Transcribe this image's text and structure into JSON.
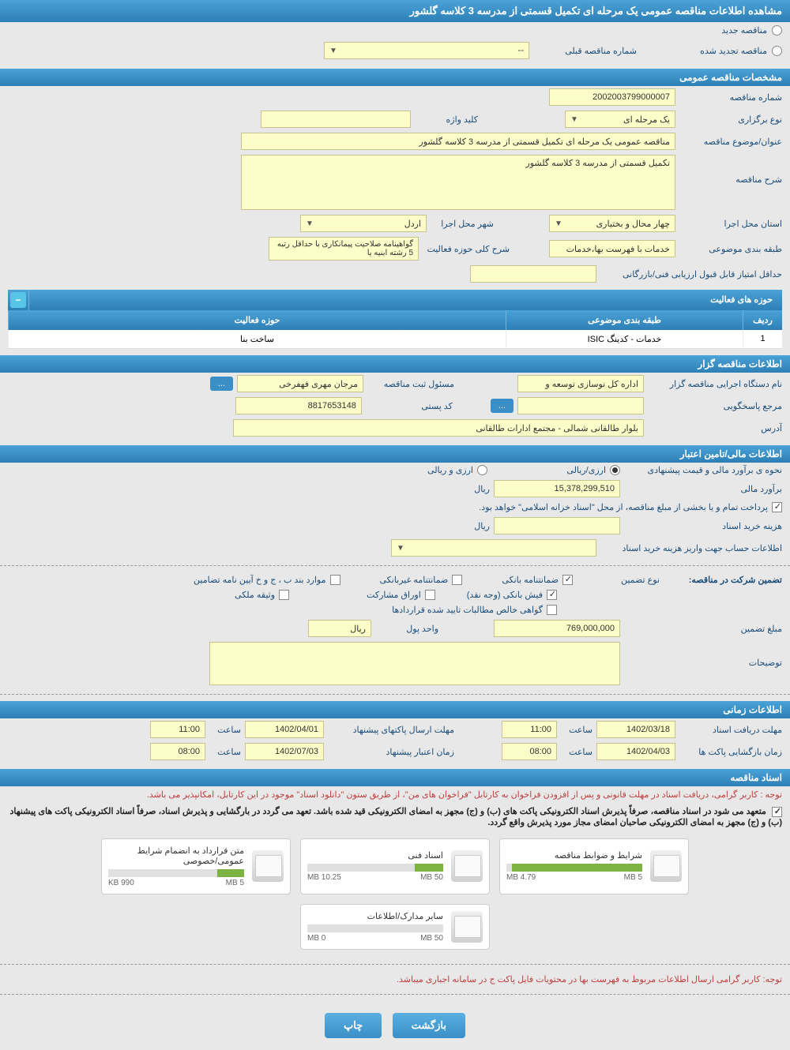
{
  "header": {
    "title": "مشاهده اطلاعات مناقصه عمومی یک مرحله ای تکمیل قسمتی از مدرسه 3 کلاسه گلشور"
  },
  "tenderType": {
    "new": "مناقصه جدید",
    "renewed": "مناقصه تجدید شده",
    "prevNumberLabel": "شماره مناقصه قبلی",
    "prevNumberValue": "--"
  },
  "general": {
    "sectionTitle": "مشخصات مناقصه عمومی",
    "tenderNumberLabel": "شماره مناقصه",
    "tenderNumber": "2002003799000007",
    "holdingTypeLabel": "نوع برگزاری",
    "holdingType": "یک مرحله ای",
    "keywordLabel": "کلید واژه",
    "keyword": "",
    "subjectLabel": "عنوان/موضوع مناقصه",
    "subject": "مناقصه عمومی یک مرحله ای تکمیل قسمتی از مدرسه 3 کلاسه گلشور",
    "descLabel": "شرح مناقصه",
    "desc": "تکمیل قسمتی از مدرسه 3 کلاسه گلشور",
    "provinceLabel": "استان محل اجرا",
    "province": "چهار محال و بختیاری",
    "cityLabel": "شهر محل اجرا",
    "city": "اردل",
    "categoryLabel": "طبقه بندی موضوعی",
    "category": "خدمات با فهرست بها،خدمات",
    "activityDescLabel": "شرح کلی حوزه فعالیت",
    "activityDesc": "گواهینامه صلاحیت پیمانکاری با حداقل رتبه 5 رشته ابنیه یا",
    "minScoreLabel": "حداقل امتیاز قابل قبول ارزیابی فنی/بازرگانی",
    "minScore": ""
  },
  "activityTable": {
    "title": "حوزه های فعالیت",
    "headers": {
      "row": "ردیف",
      "category": "طبقه بندی موضوعی",
      "activity": "حوزه فعالیت"
    },
    "rows": [
      {
        "row": "1",
        "category": "خدمات - کدینگ ISIC",
        "activity": "ساخت بنا"
      }
    ]
  },
  "organizer": {
    "sectionTitle": "اطلاعات مناقصه گزار",
    "orgLabel": "نام دستگاه اجرایی مناقصه گزار",
    "org": "اداره کل نوسازی  توسعه و",
    "responsibleLabel": "مسئول ثبت مناقصه",
    "responsible": "مرجان مهری فهفرخی",
    "refLabel": "مرجع پاسخگویی",
    "ref": "",
    "postalLabel": "کد پستی",
    "postal": "8817653148",
    "addressLabel": "آدرس",
    "address": "بلوار طالقانی شمالی - مجتمع ادارات طالقانی"
  },
  "financial": {
    "sectionTitle": "اطلاعات مالی/تامین اعتبار",
    "methodLabel": "نحوه ی برآورد مالی و قیمت پیشنهادی",
    "fxRial": "ارزی/ریالی",
    "fxAndRial": "ارزی و ریالی",
    "estimateLabel": "برآورد مالی",
    "estimate": "15,378,299,510",
    "rialUnit": "ریال",
    "paymentNote": "پرداخت تمام و یا بخشی از مبلغ مناقصه، از محل \"اسناد خزانه اسلامی\" خواهد بود.",
    "docCostLabel": "هزینه خرید اسناد",
    "docCost": "",
    "accountLabel": "اطلاعات حساب جهت واریز هزینه خرید اسناد",
    "guaranteeTitle": "تضمین شرکت در مناقصه:",
    "guaranteeTypeLabel": "نوع تضمین",
    "opt1": "ضمانتنامه بانکی",
    "opt2": "ضمانتنامه غیربانکی",
    "opt3": "موارد بند ب ، ج و خ آیین نامه تضامین",
    "opt4": "فیش بانکی (وجه نقد)",
    "opt5": "اوراق مشارکت",
    "opt6": "وثیقه ملکی",
    "opt7": "گواهی خالص مطالبات تایید شده قراردادها",
    "guaranteeAmountLabel": "مبلغ تضمین",
    "guaranteeAmount": "769,000,000",
    "currencyUnitLabel": "واحد پول",
    "currencyUnit": "ریال",
    "notesLabel": "توضیحات"
  },
  "timing": {
    "sectionTitle": "اطلاعات زمانی",
    "docDeadlineLabel": "مهلت دریافت اسناد",
    "docDeadlineDate": "1402/03/18",
    "timeLabel": "ساعت",
    "docDeadlineTime": "11:00",
    "packetDeadlineLabel": "مهلت ارسال پاکتهای پیشنهاد",
    "packetDeadlineDate": "1402/04/01",
    "packetDeadlineTime": "11:00",
    "openLabel": "زمان بازگشایی پاکت ها",
    "openDate": "1402/04/03",
    "openTime": "08:00",
    "validityLabel": "زمان اعتبار پیشنهاد",
    "validityDate": "1402/07/03",
    "validityTime": "08:00"
  },
  "docs": {
    "sectionTitle": "اسناد مناقصه",
    "note1": "توجه : کاربر گرامی، دریافت اسناد در مهلت قانونی و پس از افزودن فراخوان به کارتابل \"فراخوان های من\"، از طریق ستون \"دانلود اسناد\" موجود در این کارتابل، امکانپذیر می باشد.",
    "note2": "متعهد می شود در اسناد مناقصه، صرفاً پذیرش اسناد الکترونیکی پاکت های (ب) و (ج) مجهز به امضای الکترونیکی قید شده باشد. تعهد می گردد در بارگشایی و پذیرش اسناد، صرفاً اسناد الکترونیکی پاکت های پیشنهاد (ب) و (ج) مجهز به امضای الکترونیکی صاحبان امضای مجاز مورد پذیرش واقع گردد.",
    "note3": "توجه: کاربر گرامی ارسال اطلاعات مربوط به فهرست بها در محتویات فایل پاکت ج در سامانه اجباری میباشد.",
    "items": [
      {
        "title": "شرایط و ضوابط مناقصه",
        "used": "4.79 MB",
        "total": "5 MB",
        "pct": 96
      },
      {
        "title": "اسناد فنی",
        "used": "10.25 MB",
        "total": "50 MB",
        "pct": 21
      },
      {
        "title": "متن قرارداد به انضمام شرایط عمومی/خصوصی",
        "used": "990 KB",
        "total": "5 MB",
        "pct": 20
      },
      {
        "title": "سایر مدارک/اطلاعات",
        "used": "0 MB",
        "total": "50 MB",
        "pct": 0
      }
    ]
  },
  "actions": {
    "print": "چاپ",
    "back": "بازگشت"
  },
  "dots": "..."
}
